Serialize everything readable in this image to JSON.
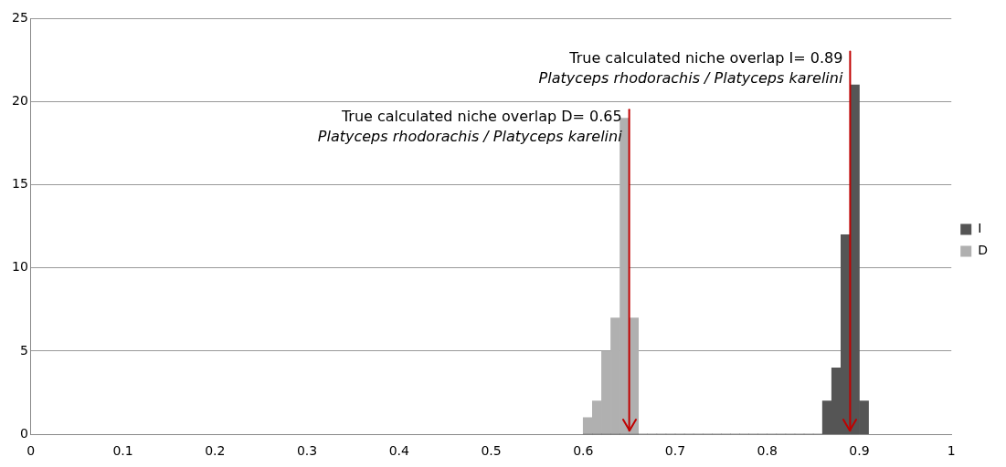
{
  "chart_data": {
    "type": "histogram",
    "bins": [
      0.6,
      0.61,
      0.62,
      0.63,
      0.64,
      0.65,
      0.66,
      0.67,
      0.68,
      0.69,
      0.7,
      0.71,
      0.72,
      0.73,
      0.74,
      0.75,
      0.76,
      0.77,
      0.78,
      0.79,
      0.8,
      0.81,
      0.82,
      0.83,
      0.84,
      0.85,
      0.86,
      0.87,
      0.88,
      0.89,
      0.9,
      0.91
    ],
    "series": [
      {
        "name": "I",
        "color": "#555555",
        "values": [
          0,
          0,
          0,
          0,
          0,
          0,
          0,
          0,
          0,
          0,
          0,
          0,
          0,
          0,
          0,
          0,
          0,
          0,
          0,
          0,
          0,
          0,
          0,
          0,
          0,
          0,
          2,
          4,
          12,
          21,
          2
        ]
      },
      {
        "name": "D",
        "color": "#b0b0b0",
        "values": [
          1,
          2,
          5,
          7,
          19,
          7,
          0,
          0,
          0,
          0,
          0,
          0,
          0,
          0,
          0,
          0,
          0,
          0,
          0,
          0,
          0,
          0,
          0,
          0,
          0,
          0,
          0,
          0,
          0,
          0,
          0
        ]
      }
    ],
    "xlim": [
      0,
      1
    ],
    "xticks": [
      0,
      0.1,
      0.2,
      0.3,
      0.4,
      0.5,
      0.6,
      0.7,
      0.8,
      0.9,
      1
    ],
    "ylim": [
      0,
      25
    ],
    "yticks": [
      0,
      5,
      10,
      15,
      20,
      25
    ],
    "grid": "y",
    "legend": "right",
    "ref_lines": [
      {
        "axis": "x",
        "value": 0.89,
        "color": "#c00000",
        "label": "True calculated niche overlap I= 0.89\nPlatyceps rhodorachis / Platyceps karelini"
      },
      {
        "axis": "x",
        "value": 0.65,
        "color": "#c00000",
        "label": "True calculated niche overlap D= 0.65\nPlatyceps rhodorachis / Platyceps karelini"
      }
    ]
  }
}
